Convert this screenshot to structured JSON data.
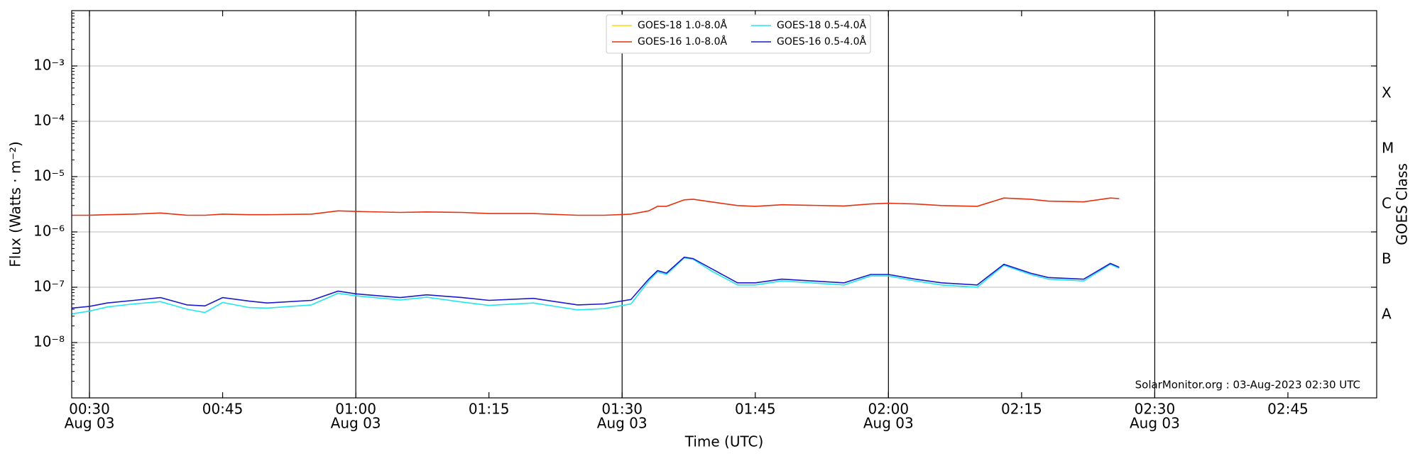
{
  "chart_data": {
    "type": "line",
    "xlabel": "Time (UTC)",
    "ylabel": "Flux (Watts · m⁻²)",
    "y2label": "GOES Class",
    "annotation": "SolarMonitor.org : 03-Aug-2023 02:30 UTC",
    "log_y": true,
    "grid": true,
    "legend": "upper center",
    "xlim": [
      "00:28",
      "02:55"
    ],
    "ylim": [
      1e-09,
      0.01
    ],
    "y2lim": [
      1e-09,
      0.01
    ],
    "xticks": [
      {
        "value": "00:30",
        "label": [
          "00:30",
          "Aug 03"
        ]
      },
      "00:45",
      {
        "value": "01:00",
        "label": [
          "01:00",
          "Aug 03"
        ]
      },
      "01:15",
      {
        "value": "01:30",
        "label": [
          "01:30",
          "Aug 03"
        ]
      },
      "01:45",
      {
        "value": "02:00",
        "label": [
          "02:00",
          "Aug 03"
        ]
      },
      "02:15",
      {
        "value": "02:30",
        "label": [
          "02:30",
          "Aug 03"
        ]
      },
      "02:45"
    ],
    "vlines": [
      "00:30",
      "01:00",
      "01:30",
      "02:00",
      "02:30"
    ],
    "yticks": [
      {
        "value": 1e-08,
        "label": "10⁻⁸"
      },
      {
        "value": 1e-07,
        "label": "10⁻⁷"
      },
      {
        "value": 1e-06,
        "label": "10⁻⁶"
      },
      {
        "value": 1e-05,
        "label": "10⁻⁵"
      },
      {
        "value": 0.0001,
        "label": "10⁻⁴"
      },
      {
        "value": 0.001,
        "label": "10⁻³"
      }
    ],
    "y2ticks": [
      {
        "value": 3.16e-08,
        "label": "A"
      },
      {
        "value": 3.16e-07,
        "label": "B"
      },
      {
        "value": 3.16e-06,
        "label": "C"
      },
      {
        "value": 3.16e-05,
        "label": "M"
      },
      {
        "value": 0.000316,
        "label": "X"
      }
    ],
    "x": [
      "00:28",
      "00:30",
      "00:32",
      "00:35",
      "00:38",
      "00:41",
      "00:43",
      "00:45",
      "00:48",
      "00:50",
      "00:55",
      "00:58",
      "01:00",
      "01:05",
      "01:08",
      "01:12",
      "01:15",
      "01:20",
      "01:25",
      "01:28",
      "01:31",
      "01:33",
      "01:34",
      "01:35",
      "01:37",
      "01:38",
      "01:40",
      "01:43",
      "01:45",
      "01:48",
      "01:55",
      "01:58",
      "02:00",
      "02:03",
      "02:06",
      "02:10",
      "02:13",
      "02:16",
      "02:18",
      "02:22",
      "02:25",
      "02:26"
    ],
    "series": [
      {
        "name": "GOES-18 1.0-8.0Å",
        "color": "#ffd700",
        "values": [
          null,
          null,
          null,
          null,
          null,
          null,
          null,
          null,
          null,
          null,
          null,
          null,
          null,
          null,
          null,
          null,
          null,
          null,
          null,
          null,
          null,
          null,
          null,
          null,
          null,
          null,
          null,
          null,
          null,
          null,
          null,
          null,
          null,
          null,
          null,
          null,
          null,
          null,
          null,
          null,
          null,
          null
        ]
      },
      {
        "name": "GOES-16 1.0-8.0Å",
        "color": "#e8300e",
        "values": [
          2e-06,
          2e-06,
          2.05e-06,
          2.1e-06,
          2.2e-06,
          2e-06,
          2e-06,
          2.1e-06,
          2.05e-06,
          2.05e-06,
          2.1e-06,
          2.4e-06,
          2.35e-06,
          2.25e-06,
          2.3e-06,
          2.25e-06,
          2.15e-06,
          2.15e-06,
          2e-06,
          2e-06,
          2.1e-06,
          2.4e-06,
          2.9e-06,
          2.9e-06,
          3.8e-06,
          3.9e-06,
          3.5e-06,
          3e-06,
          2.9e-06,
          3.1e-06,
          2.95e-06,
          3.2e-06,
          3.3e-06,
          3.2e-06,
          3e-06,
          2.9e-06,
          4.1e-06,
          3.9e-06,
          3.6e-06,
          3.5e-06,
          4.1e-06,
          4e-06
        ]
      },
      {
        "name": "GOES-18 0.5-4.0Å",
        "color": "#22e6f0",
        "values": [
          3.3e-08,
          3.7e-08,
          4.4e-08,
          5e-08,
          5.5e-08,
          4e-08,
          3.5e-08,
          5.3e-08,
          4.3e-08,
          4.2e-08,
          4.8e-08,
          7.8e-08,
          7e-08,
          5.9e-08,
          6.6e-08,
          5.4e-08,
          4.7e-08,
          5.2e-08,
          3.9e-08,
          4.1e-08,
          5e-08,
          1.3e-07,
          1.9e-07,
          1.7e-07,
          3.4e-07,
          3.2e-07,
          2e-07,
          1.1e-07,
          1.1e-07,
          1.3e-07,
          1.1e-07,
          1.6e-07,
          1.6e-07,
          1.3e-07,
          1.1e-07,
          1e-07,
          2.5e-07,
          1.7e-07,
          1.4e-07,
          1.3e-07,
          2.6e-07,
          2.2e-07
        ]
      },
      {
        "name": "GOES-16 0.5-4.0Å",
        "color": "#1a1acc",
        "values": [
          4.2e-08,
          4.5e-08,
          5.2e-08,
          5.8e-08,
          6.5e-08,
          4.8e-08,
          4.6e-08,
          6.5e-08,
          5.6e-08,
          5.2e-08,
          5.8e-08,
          8.5e-08,
          7.6e-08,
          6.5e-08,
          7.3e-08,
          6.5e-08,
          5.8e-08,
          6.3e-08,
          4.8e-08,
          5e-08,
          6e-08,
          1.4e-07,
          2e-07,
          1.8e-07,
          3.5e-07,
          3.3e-07,
          2.2e-07,
          1.2e-07,
          1.2e-07,
          1.4e-07,
          1.2e-07,
          1.7e-07,
          1.7e-07,
          1.4e-07,
          1.2e-07,
          1.1e-07,
          2.6e-07,
          1.8e-07,
          1.5e-07,
          1.4e-07,
          2.7e-07,
          2.3e-07
        ]
      }
    ]
  }
}
